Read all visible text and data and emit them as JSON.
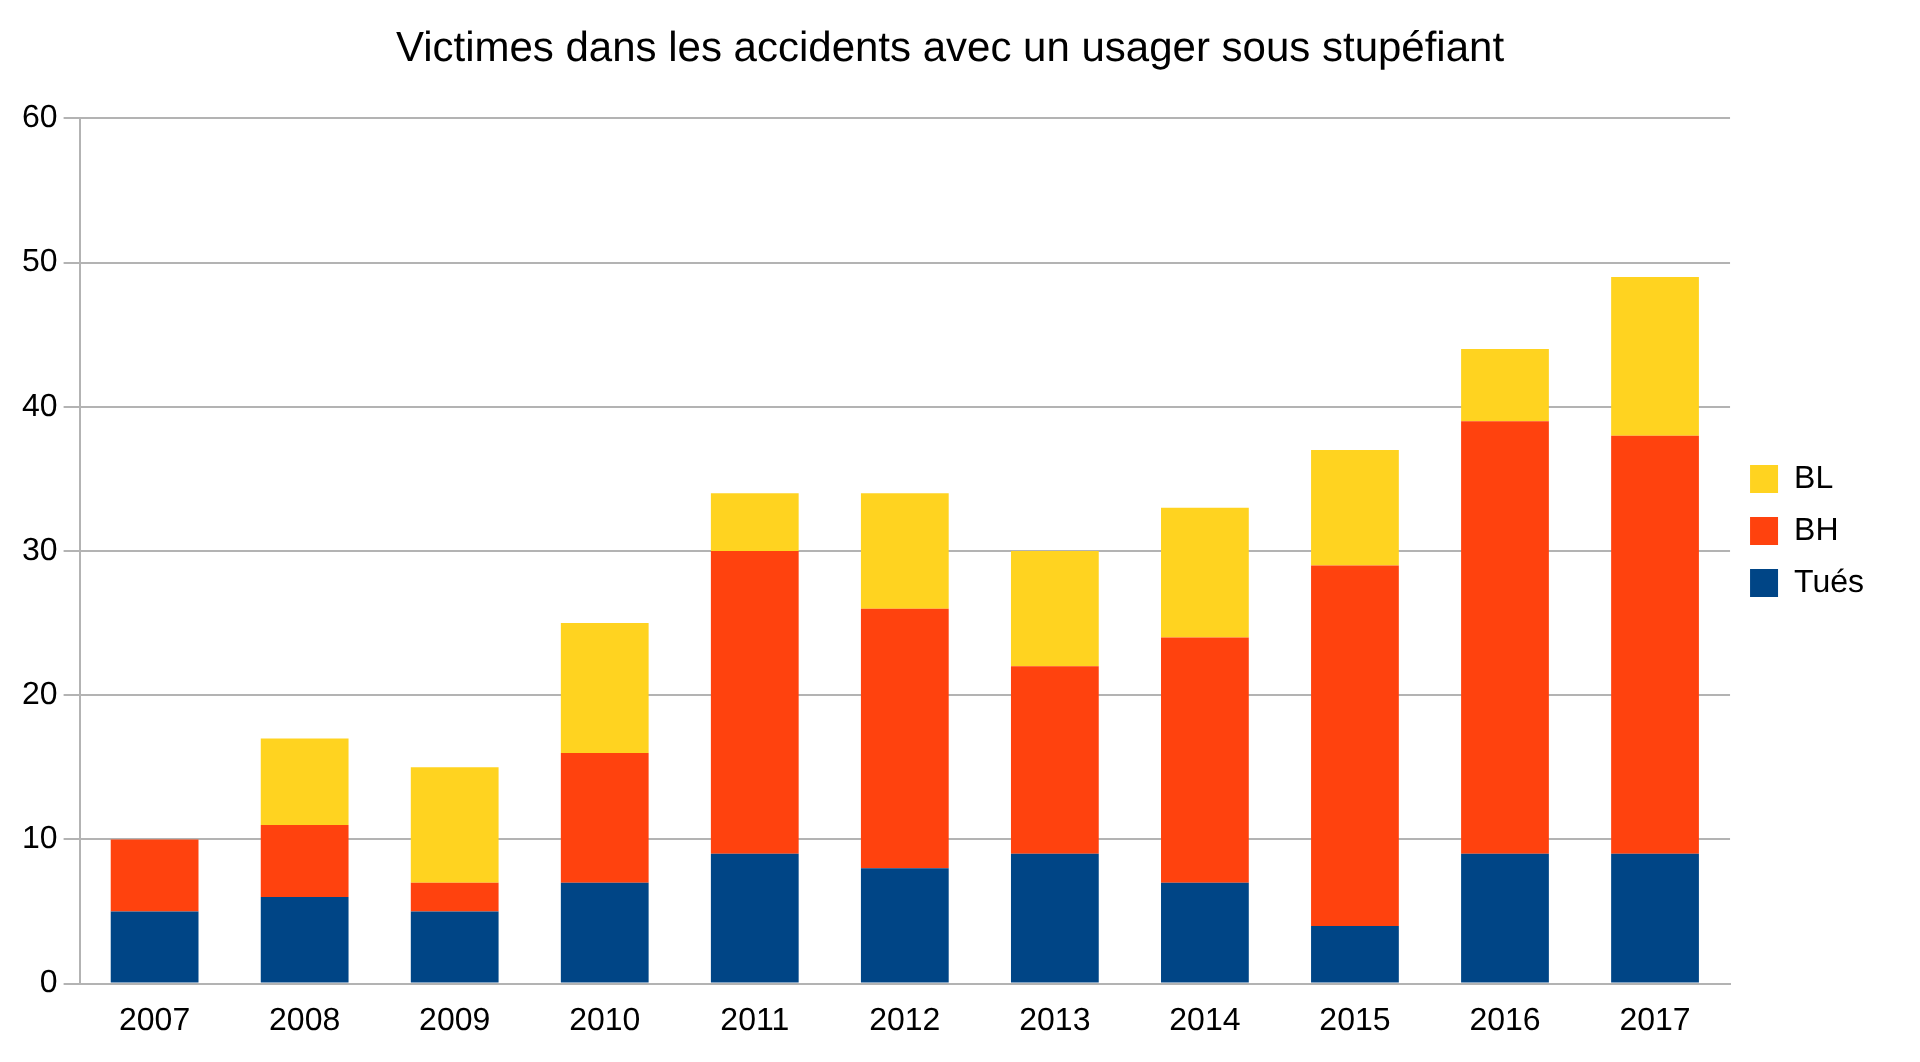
{
  "chart_data": {
    "type": "bar",
    "title": "Victimes dans les accidents avec un usager sous stupéfiant",
    "categories": [
      "2007",
      "2008",
      "2009",
      "2010",
      "2011",
      "2012",
      "2013",
      "2014",
      "2015",
      "2016",
      "2017"
    ],
    "stacked": true,
    "series": [
      {
        "name": "Tués",
        "color": "#004586",
        "values": [
          5,
          6,
          5,
          7,
          9,
          8,
          9,
          7,
          4,
          9,
          9
        ]
      },
      {
        "name": "BH",
        "color": "#ff420e",
        "values": [
          5,
          5,
          2,
          9,
          21,
          18,
          13,
          17,
          25,
          30,
          29
        ]
      },
      {
        "name": "BL",
        "color": "#ffd320",
        "values": [
          0,
          6,
          8,
          9,
          4,
          8,
          8,
          9,
          8,
          5,
          11
        ]
      }
    ],
    "ylim": [
      0,
      60
    ],
    "yticks": [
      0,
      10,
      20,
      30,
      40,
      50,
      60
    ],
    "grid": "y",
    "legend": "right"
  }
}
